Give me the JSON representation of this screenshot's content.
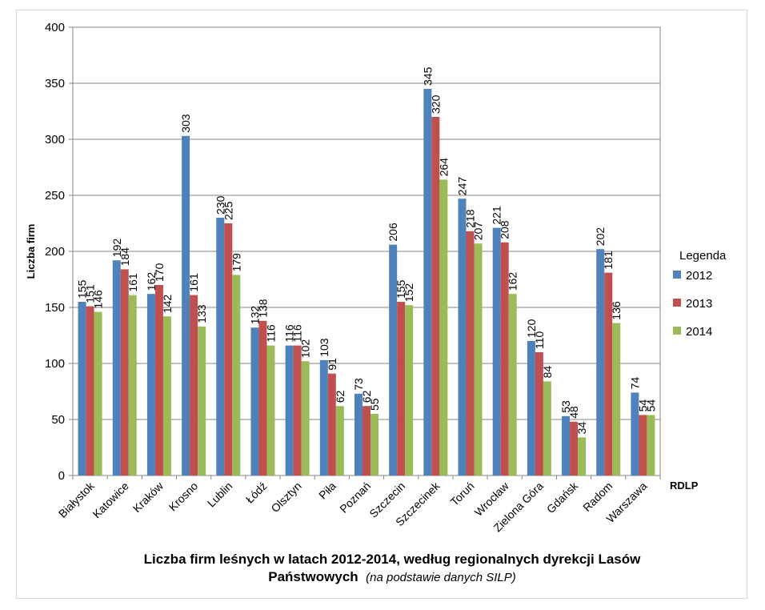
{
  "chart_data": {
    "type": "bar",
    "title": "Liczba firm leśnych w latach 2012-2014, według regionalnych dyrekcji Lasów",
    "title_line2": "Państwowych",
    "subtitle": "(na podstawie danych SILP)",
    "xlabel": "RDLP",
    "ylabel": "Liczba firm",
    "ylim": [
      0,
      400
    ],
    "yticks": [
      0,
      50,
      100,
      150,
      200,
      250,
      300,
      350,
      400
    ],
    "grid": true,
    "legend_title": "Legenda",
    "legend_position": "right",
    "categories": [
      "Białystok",
      "Katowice",
      "Kraków",
      "Krosno",
      "Lublin",
      "Łódź",
      "Olsztyn",
      "Piła",
      "Poznań",
      "Szczecin",
      "Szczecinek",
      "Toruń",
      "Wrocław",
      "Zielona Góra",
      "Gdańsk",
      "Radom",
      "Warszawa"
    ],
    "series": [
      {
        "name": "2012",
        "color": "#4f81bd",
        "values": [
          155,
          192,
          162,
          303,
          230,
          132,
          116,
          103,
          73,
          206,
          345,
          247,
          221,
          120,
          53,
          202,
          74
        ]
      },
      {
        "name": "2013",
        "color": "#c0504d",
        "values": [
          151,
          184,
          170,
          161,
          225,
          138,
          116,
          91,
          62,
          155,
          320,
          218,
          208,
          110,
          48,
          181,
          54
        ]
      },
      {
        "name": "2014",
        "color": "#9bbb59",
        "values": [
          146,
          161,
          142,
          133,
          179,
          116,
          102,
          62,
          55,
          152,
          264,
          207,
          162,
          84,
          34,
          136,
          54
        ]
      }
    ]
  }
}
